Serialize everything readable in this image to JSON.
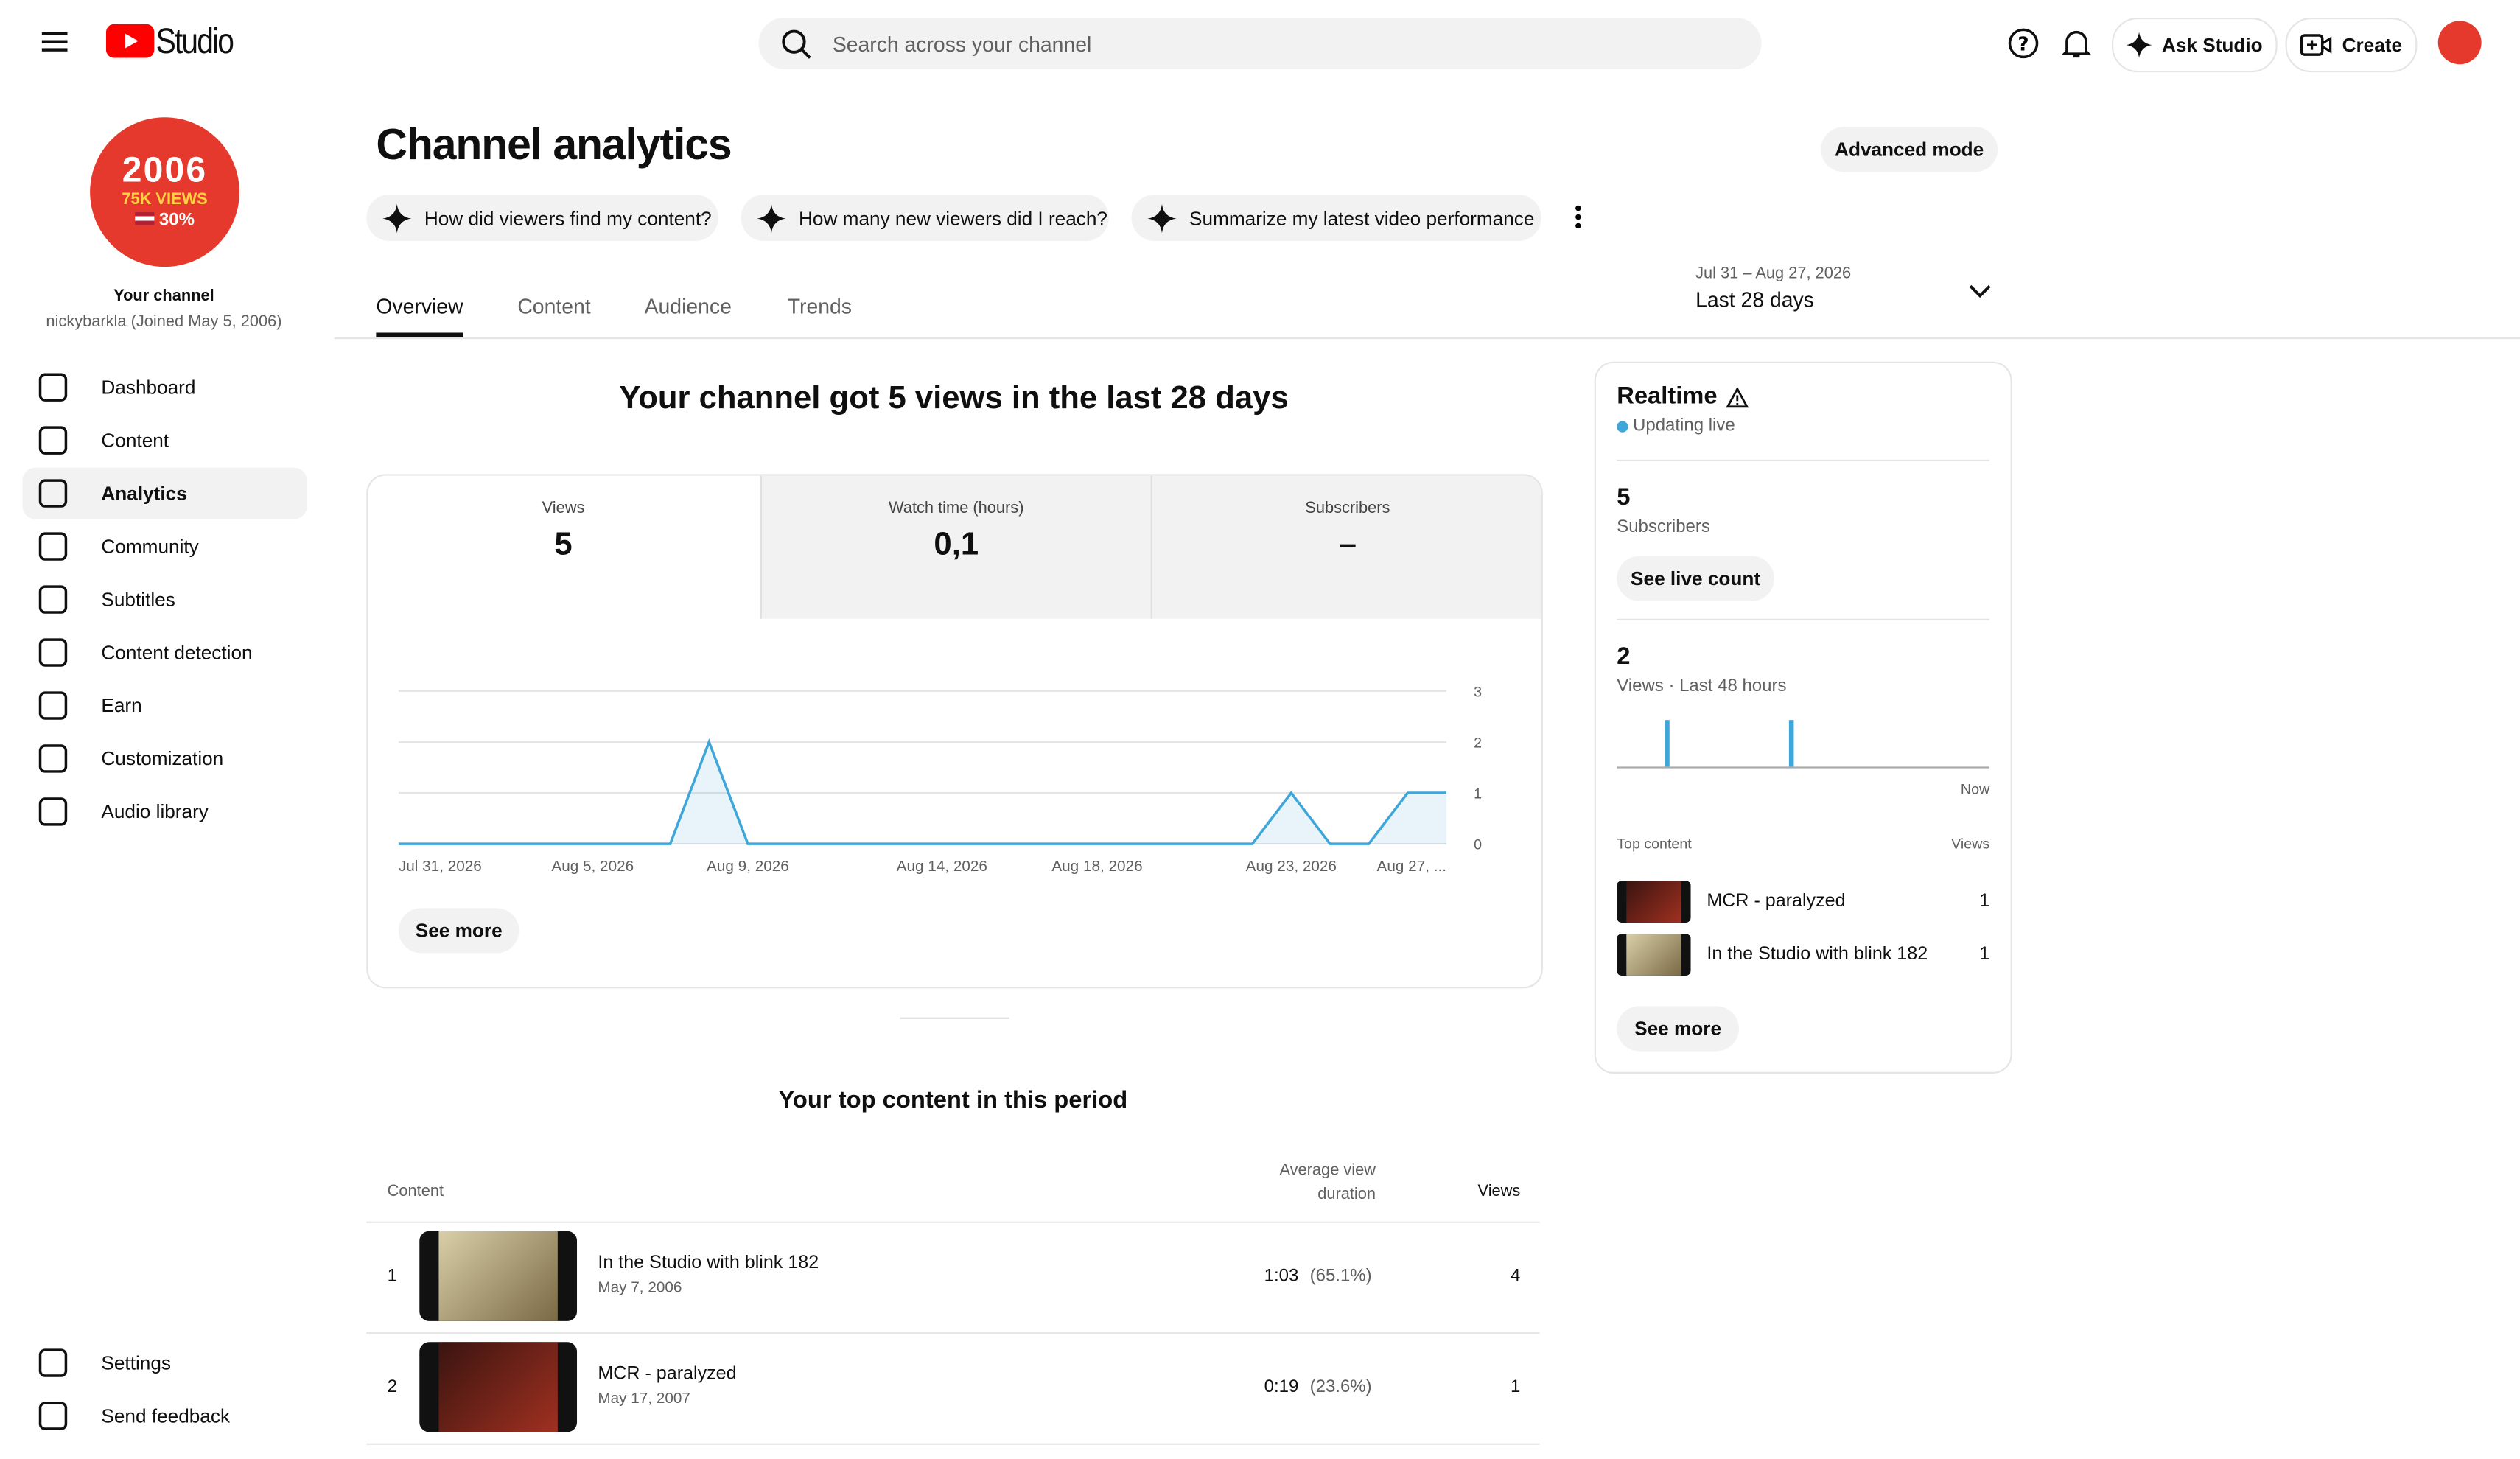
{
  "header": {
    "logo": "Studio",
    "search_placeholder": "Search across your channel",
    "ask": "Ask Studio",
    "create": "Create"
  },
  "avatar": {
    "year": "2006",
    "views": "75K VIEWS",
    "share": "30%"
  },
  "sidebar": {
    "channel_label": "Your channel",
    "channel_sub": "nickybarkla (Joined May 5, 2006)",
    "nav": [
      "Dashboard",
      "Content",
      "Analytics",
      "Community",
      "Subtitles",
      "Content detection",
      "Earn",
      "Customization",
      "Audio library"
    ],
    "bottom": [
      "Settings",
      "Send feedback"
    ]
  },
  "page": {
    "title": "Channel analytics",
    "advanced": "Advanced mode",
    "prompts": [
      "How did viewers find my content?",
      "How many new viewers did I reach?",
      "Summarize my latest video performance"
    ],
    "tabs": [
      "Overview",
      "Content",
      "Audience",
      "Trends"
    ],
    "date_range": "Jul 31 – Aug 27, 2026",
    "date_label": "Last 28 days"
  },
  "overview": {
    "headline": "Your channel got 5 views in the last 28 days",
    "metrics": [
      {
        "label": "Views",
        "value": "5"
      },
      {
        "label": "Watch time (hours)",
        "value": "0,1"
      },
      {
        "label": "Subscribers",
        "value": "–"
      }
    ],
    "see_more": "See more"
  },
  "chart_data": {
    "type": "line",
    "color": "#3ea6d8",
    "x": [
      "Jul 31, 2026",
      null,
      null,
      null,
      null,
      "Aug 5, 2026",
      null,
      null,
      null,
      "Aug 9, 2026",
      null,
      null,
      null,
      null,
      "Aug 14, 2026",
      null,
      null,
      null,
      "Aug 18, 2026",
      null,
      null,
      null,
      null,
      "Aug 23, 2026",
      null,
      null,
      null,
      "Aug 27, ..."
    ],
    "values": [
      0,
      0,
      0,
      0,
      0,
      0,
      0,
      0,
      2,
      0,
      0,
      0,
      0,
      0,
      0,
      0,
      0,
      0,
      0,
      0,
      0,
      0,
      0,
      1,
      0,
      0,
      1,
      1
    ],
    "ylim": [
      0,
      3
    ],
    "yticks": [
      0,
      1,
      2,
      3
    ],
    "grid": true
  },
  "top_content": {
    "title": "Your top content in this period",
    "columns": {
      "content": "Content",
      "duration": "Average view duration",
      "views": "Views"
    },
    "rows": [
      {
        "rank": 1,
        "title": "In the Studio with blink 182",
        "date": "May 7, 2006",
        "duration": "1:03",
        "percent": "(65.1%)",
        "views": 4
      },
      {
        "rank": 2,
        "title": "MCR - paralyzed",
        "date": "May 17, 2007",
        "duration": "0:19",
        "percent": "(23.6%)",
        "views": 1
      }
    ]
  },
  "realtime": {
    "title": "Realtime",
    "status": "Updating live",
    "subscribers": 5,
    "subscribers_label": "Subscribers",
    "live_count": "See live count",
    "views": 2,
    "views_label": "Views · Last 48 hours",
    "now": "Now",
    "hourly_views": [
      0,
      0,
      0,
      0,
      0,
      0,
      1,
      0,
      0,
      0,
      0,
      0,
      0,
      0,
      0,
      0,
      0,
      0,
      0,
      0,
      0,
      0,
      1,
      0,
      0,
      0,
      0,
      0,
      0,
      0,
      0,
      0,
      0,
      0,
      0,
      0,
      0,
      0,
      0,
      0,
      0,
      0,
      0,
      0,
      0,
      0,
      0,
      0
    ],
    "top_label": "Top content",
    "views_col": "Views",
    "top": [
      {
        "title": "MCR - paralyzed",
        "views": 1
      },
      {
        "title": "In the Studio with blink 182",
        "views": 1
      }
    ],
    "see_more": "See more"
  }
}
